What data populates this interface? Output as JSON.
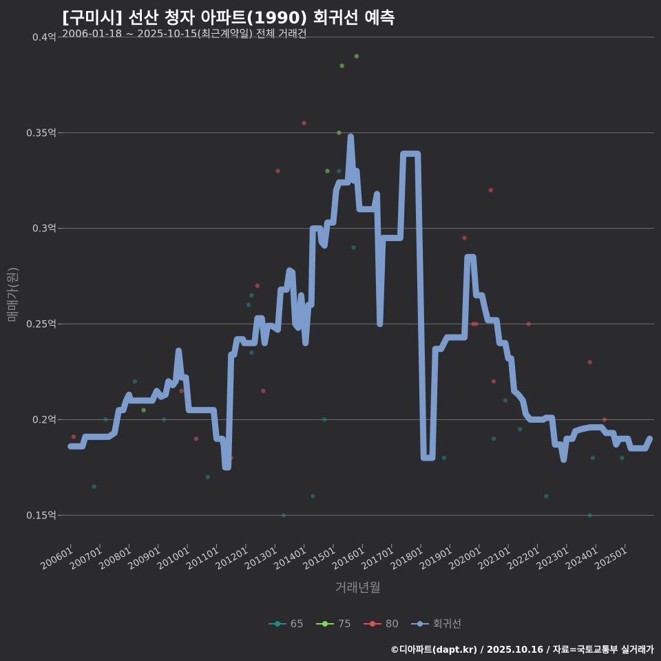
{
  "chart_data": {
    "type": "line",
    "title": "[구미시] 선산 청자 아파트(1990) 회귀선 예측",
    "subtitle": "2006-01-18 ~ 2025-10-15(최근계약일) 전체 거래건",
    "xlabel": "거래년월",
    "ylabel": "매매가(원)",
    "caption": "©디아파트(dapt.kr) / 2025.10.16 / 자료=국토교통부 실거래가",
    "ylim": [
      0.135,
      0.405
    ],
    "xlim": [
      2005.7,
      2026.0
    ],
    "y_ticks": [
      {
        "value": 0.15,
        "label": "0.15억"
      },
      {
        "value": 0.2,
        "label": "0.2억"
      },
      {
        "value": 0.25,
        "label": "0.25억"
      },
      {
        "value": 0.3,
        "label": "0.3억"
      },
      {
        "value": 0.35,
        "label": "0.35억"
      },
      {
        "value": 0.4,
        "label": "0.4억"
      }
    ],
    "x_ticks": [
      {
        "value": 2006.0,
        "label": "200601"
      },
      {
        "value": 2007.0,
        "label": "200701"
      },
      {
        "value": 2008.0,
        "label": "200801"
      },
      {
        "value": 2009.0,
        "label": "200901"
      },
      {
        "value": 2010.0,
        "label": "201001"
      },
      {
        "value": 2011.0,
        "label": "201101"
      },
      {
        "value": 2012.0,
        "label": "201201"
      },
      {
        "value": 2013.0,
        "label": "201301"
      },
      {
        "value": 2014.0,
        "label": "201401"
      },
      {
        "value": 2015.0,
        "label": "201501"
      },
      {
        "value": 2016.0,
        "label": "201601"
      },
      {
        "value": 2017.0,
        "label": "201701"
      },
      {
        "value": 2018.0,
        "label": "201801"
      },
      {
        "value": 2019.0,
        "label": "201901"
      },
      {
        "value": 2020.0,
        "label": "202001"
      },
      {
        "value": 2021.0,
        "label": "202101"
      },
      {
        "value": 2022.0,
        "label": "202201"
      },
      {
        "value": 2023.0,
        "label": "202301"
      },
      {
        "value": 2024.0,
        "label": "202401"
      },
      {
        "value": 2025.0,
        "label": "202501"
      }
    ],
    "legend": [
      {
        "name": "65",
        "color": "#1f8a86"
      },
      {
        "name": "75",
        "color": "#7ed957"
      },
      {
        "name": "80",
        "color": "#e05252"
      },
      {
        "name": "회귀선",
        "color": "#7b9ccc"
      }
    ],
    "scatter_series": [
      {
        "name": "65",
        "color": "#1f8a86",
        "points": [
          [
            2006.8,
            0.165
          ],
          [
            2007.2,
            0.2
          ],
          [
            2008.2,
            0.22
          ],
          [
            2009.2,
            0.2
          ],
          [
            2010.7,
            0.17
          ],
          [
            2012.1,
            0.26
          ],
          [
            2012.2,
            0.265
          ],
          [
            2012.2,
            0.235
          ],
          [
            2013.3,
            0.15
          ],
          [
            2014.3,
            0.16
          ],
          [
            2014.7,
            0.2
          ],
          [
            2015.2,
            0.33
          ],
          [
            2015.7,
            0.29
          ],
          [
            2018.8,
            0.18
          ],
          [
            2020.5,
            0.19
          ],
          [
            2020.9,
            0.21
          ],
          [
            2021.4,
            0.195
          ],
          [
            2022.3,
            0.16
          ],
          [
            2023.8,
            0.15
          ],
          [
            2023.9,
            0.18
          ],
          [
            2024.9,
            0.18
          ]
        ]
      },
      {
        "name": "75",
        "color": "#7ed957",
        "points": [
          [
            2008.5,
            0.205
          ],
          [
            2014.8,
            0.33
          ],
          [
            2015.2,
            0.35
          ],
          [
            2015.3,
            0.385
          ],
          [
            2015.8,
            0.39
          ]
        ]
      },
      {
        "name": "80",
        "color": "#e05252",
        "points": [
          [
            2006.1,
            0.191
          ],
          [
            2009.8,
            0.215
          ],
          [
            2010.3,
            0.19
          ],
          [
            2011.5,
            0.18
          ],
          [
            2012.4,
            0.27
          ],
          [
            2012.6,
            0.215
          ],
          [
            2013.1,
            0.33
          ],
          [
            2014.0,
            0.355
          ],
          [
            2019.5,
            0.295
          ],
          [
            2019.8,
            0.25
          ],
          [
            2019.9,
            0.25
          ],
          [
            2020.5,
            0.22
          ],
          [
            2020.4,
            0.32
          ],
          [
            2021.7,
            0.25
          ],
          [
            2023.8,
            0.23
          ],
          [
            2024.3,
            0.2
          ]
        ]
      }
    ],
    "series": [
      {
        "name": "회귀선",
        "color": "#7b9ccc",
        "points": [
          [
            2006.0,
            0.186
          ],
          [
            2006.4,
            0.186
          ],
          [
            2006.5,
            0.191
          ],
          [
            2007.3,
            0.191
          ],
          [
            2007.5,
            0.193
          ],
          [
            2007.65,
            0.205
          ],
          [
            2007.8,
            0.205
          ],
          [
            2007.9,
            0.21
          ],
          [
            2008.0,
            0.213
          ],
          [
            2008.05,
            0.21
          ],
          [
            2008.8,
            0.21
          ],
          [
            2008.95,
            0.215
          ],
          [
            2009.1,
            0.212
          ],
          [
            2009.25,
            0.213
          ],
          [
            2009.35,
            0.22
          ],
          [
            2009.5,
            0.218
          ],
          [
            2009.6,
            0.22
          ],
          [
            2009.7,
            0.236
          ],
          [
            2009.8,
            0.222
          ],
          [
            2009.95,
            0.222
          ],
          [
            2010.05,
            0.205
          ],
          [
            2010.9,
            0.205
          ],
          [
            2011.0,
            0.19
          ],
          [
            2011.2,
            0.19
          ],
          [
            2011.25,
            0.186
          ],
          [
            2011.3,
            0.175
          ],
          [
            2011.4,
            0.175
          ],
          [
            2011.5,
            0.234
          ],
          [
            2011.6,
            0.234
          ],
          [
            2011.7,
            0.242
          ],
          [
            2011.9,
            0.242
          ],
          [
            2011.95,
            0.24
          ],
          [
            2012.3,
            0.24
          ],
          [
            2012.4,
            0.253
          ],
          [
            2012.55,
            0.253
          ],
          [
            2012.65,
            0.24
          ],
          [
            2012.75,
            0.249
          ],
          [
            2012.9,
            0.249
          ],
          [
            2013.1,
            0.247
          ],
          [
            2013.2,
            0.268
          ],
          [
            2013.4,
            0.268
          ],
          [
            2013.5,
            0.278
          ],
          [
            2013.6,
            0.277
          ],
          [
            2013.7,
            0.25
          ],
          [
            2013.8,
            0.248
          ],
          [
            2013.9,
            0.265
          ],
          [
            2014.0,
            0.25
          ],
          [
            2014.05,
            0.24
          ],
          [
            2014.15,
            0.26
          ],
          [
            2014.25,
            0.26
          ],
          [
            2014.3,
            0.3
          ],
          [
            2014.55,
            0.3
          ],
          [
            2014.6,
            0.293
          ],
          [
            2014.7,
            0.291
          ],
          [
            2014.8,
            0.303
          ],
          [
            2015.0,
            0.303
          ],
          [
            2015.1,
            0.32
          ],
          [
            2015.2,
            0.324
          ],
          [
            2015.5,
            0.324
          ],
          [
            2015.6,
            0.348
          ],
          [
            2015.7,
            0.325
          ],
          [
            2015.8,
            0.33
          ],
          [
            2015.9,
            0.31
          ],
          [
            2016.4,
            0.31
          ],
          [
            2016.5,
            0.318
          ],
          [
            2016.6,
            0.25
          ],
          [
            2016.7,
            0.295
          ],
          [
            2017.3,
            0.295
          ],
          [
            2017.4,
            0.339
          ],
          [
            2017.9,
            0.339
          ],
          [
            2018.0,
            0.26
          ],
          [
            2018.1,
            0.18
          ],
          [
            2018.4,
            0.18
          ],
          [
            2018.5,
            0.237
          ],
          [
            2018.7,
            0.237
          ],
          [
            2018.9,
            0.243
          ],
          [
            2019.5,
            0.243
          ],
          [
            2019.6,
            0.285
          ],
          [
            2019.8,
            0.285
          ],
          [
            2019.9,
            0.265
          ],
          [
            2020.1,
            0.265
          ],
          [
            2020.2,
            0.258
          ],
          [
            2020.3,
            0.252
          ],
          [
            2020.6,
            0.252
          ],
          [
            2020.7,
            0.24
          ],
          [
            2020.9,
            0.24
          ],
          [
            2021.0,
            0.232
          ],
          [
            2021.1,
            0.232
          ],
          [
            2021.2,
            0.215
          ],
          [
            2021.35,
            0.213
          ],
          [
            2021.5,
            0.21
          ],
          [
            2021.6,
            0.203
          ],
          [
            2021.75,
            0.2
          ],
          [
            2022.2,
            0.2
          ],
          [
            2022.3,
            0.201
          ],
          [
            2022.5,
            0.201
          ],
          [
            2022.6,
            0.187
          ],
          [
            2022.8,
            0.187
          ],
          [
            2022.9,
            0.179
          ],
          [
            2023.0,
            0.19
          ],
          [
            2023.2,
            0.19
          ],
          [
            2023.3,
            0.194
          ],
          [
            2023.5,
            0.195
          ],
          [
            2023.8,
            0.196
          ],
          [
            2024.2,
            0.196
          ],
          [
            2024.35,
            0.193
          ],
          [
            2024.6,
            0.193
          ],
          [
            2024.7,
            0.187
          ],
          [
            2024.8,
            0.19
          ],
          [
            2025.1,
            0.19
          ],
          [
            2025.2,
            0.185
          ],
          [
            2025.7,
            0.185
          ],
          [
            2025.85,
            0.19
          ]
        ]
      }
    ]
  }
}
